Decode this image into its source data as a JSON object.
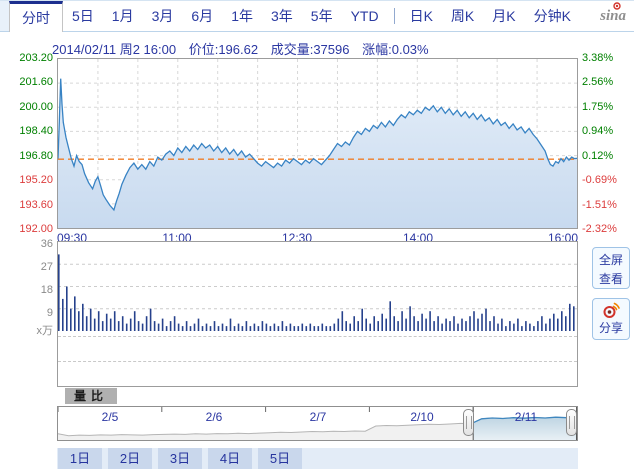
{
  "tabbar": {
    "tabs": [
      {
        "label": "分时"
      },
      {
        "label": "5日"
      },
      {
        "label": "1月"
      },
      {
        "label": "3月"
      },
      {
        "label": "6月"
      },
      {
        "label": "1年"
      },
      {
        "label": "3年"
      },
      {
        "label": "5年"
      },
      {
        "label": "YTD"
      },
      {
        "label": "日K"
      },
      {
        "label": "周K"
      },
      {
        "label": "月K"
      },
      {
        "label": "分钟K"
      }
    ],
    "active_tab": "分时",
    "logo_text": "sina"
  },
  "info_bar": {
    "datetime": "2014/02/11 周2 16:00",
    "price": "价位:196.62",
    "volume": "成交量:37596",
    "change": "涨幅:0.03%"
  },
  "main_chart": {
    "left_axis": [
      "203.20",
      "201.60",
      "200.00",
      "198.40",
      "196.80",
      "195.20",
      "193.60",
      "192.00"
    ],
    "right_axis": [
      "3.38%",
      "2.56%",
      "1.75%",
      "0.94%",
      "0.12%",
      "-0.69%",
      "-1.51%",
      "-2.32%"
    ],
    "time_axis": [
      "09:30",
      "11:00",
      "12:30",
      "14:00",
      "16:00"
    ],
    "colors": {
      "up": "#008000",
      "down": "#dc3c3c",
      "price_line": "#3883c4",
      "prev_close_line": "#f07d28",
      "volume_bar": "#26418c",
      "area_top": "#e3edf8",
      "area_bottom": "#c8daef"
    }
  },
  "volume_axis": [
    "36",
    "27",
    "18",
    "9",
    "x万"
  ],
  "side_buttons": {
    "fullscreen_line1": "全屏",
    "fullscreen_line2": "查看",
    "share": "分享"
  },
  "indicator_tab": "量比",
  "navigator": {
    "dates": [
      "2/5",
      "2/6",
      "2/7",
      "2/10",
      "2/11"
    ],
    "selected": "2/11"
  },
  "day_buttons": [
    "1日",
    "2日",
    "3日",
    "4日",
    "5日"
  ],
  "chart_data": [
    {
      "type": "line",
      "title": "分时价格",
      "x_unit": "minutes from 09:30",
      "x_range": [
        0,
        390
      ],
      "xticks": [
        "09:30",
        "11:00",
        "12:30",
        "14:00",
        "16:00"
      ],
      "ylim": [
        192.0,
        203.2
      ],
      "yticks_price": [
        203.2,
        201.6,
        200.0,
        198.4,
        196.8,
        195.2,
        193.6,
        192.0
      ],
      "yticks_percent": [
        3.38,
        2.56,
        1.75,
        0.94,
        0.12,
        -0.69,
        -1.51,
        -2.32
      ],
      "prev_close": 196.56,
      "last_price": 196.62,
      "change_percent": 0.03,
      "total_volume": 37596,
      "grid": "dashed",
      "points": [
        [
          0,
          196.6
        ],
        [
          1,
          199.0
        ],
        [
          2,
          201.9
        ],
        [
          3,
          200.2
        ],
        [
          4,
          199.0
        ],
        [
          6,
          198.0
        ],
        [
          8,
          197.3
        ],
        [
          10,
          196.6
        ],
        [
          12,
          196.1
        ],
        [
          14,
          196.8
        ],
        [
          16,
          196.4
        ],
        [
          18,
          196.2
        ],
        [
          20,
          195.6
        ],
        [
          23,
          195.0
        ],
        [
          26,
          194.6
        ],
        [
          28,
          195.1
        ],
        [
          30,
          195.4
        ],
        [
          32,
          194.8
        ],
        [
          34,
          194.2
        ],
        [
          36,
          193.9
        ],
        [
          39,
          193.5
        ],
        [
          42,
          193.2
        ],
        [
          44,
          193.8
        ],
        [
          46,
          194.3
        ],
        [
          48,
          194.9
        ],
        [
          51,
          195.5
        ],
        [
          54,
          196.0
        ],
        [
          57,
          196.3
        ],
        [
          60,
          195.9
        ],
        [
          63,
          196.2
        ],
        [
          66,
          195.9
        ],
        [
          69,
          196.4
        ],
        [
          72,
          196.1
        ],
        [
          75,
          196.7
        ],
        [
          78,
          196.5
        ],
        [
          81,
          196.9
        ],
        [
          84,
          197.1
        ],
        [
          87,
          196.8
        ],
        [
          90,
          197.3
        ],
        [
          93,
          197.0
        ],
        [
          96,
          197.4
        ],
        [
          99,
          197.1
        ],
        [
          102,
          197.5
        ],
        [
          105,
          197.2
        ],
        [
          108,
          197.6
        ],
        [
          111,
          197.3
        ],
        [
          114,
          197.5
        ],
        [
          117,
          197.1
        ],
        [
          120,
          197.4
        ],
        [
          123,
          197.0
        ],
        [
          126,
          197.3
        ],
        [
          129,
          196.9
        ],
        [
          132,
          197.2
        ],
        [
          135,
          196.8
        ],
        [
          138,
          197.1
        ],
        [
          141,
          196.7
        ],
        [
          144,
          196.9
        ],
        [
          147,
          196.6
        ],
        [
          150,
          196.3
        ],
        [
          153,
          196.1
        ],
        [
          156,
          196.4
        ],
        [
          159,
          196.2
        ],
        [
          162,
          196.0
        ],
        [
          165,
          196.3
        ],
        [
          168,
          196.1
        ],
        [
          171,
          196.5
        ],
        [
          174,
          196.3
        ],
        [
          177,
          196.6
        ],
        [
          180,
          196.4
        ],
        [
          183,
          196.2
        ],
        [
          186,
          196.5
        ],
        [
          189,
          196.3
        ],
        [
          192,
          196.6
        ],
        [
          195,
          196.4
        ],
        [
          198,
          196.2
        ],
        [
          201,
          196.5
        ],
        [
          204,
          196.8
        ],
        [
          207,
          197.2
        ],
        [
          210,
          197.6
        ],
        [
          213,
          197.4
        ],
        [
          216,
          197.7
        ],
        [
          219,
          197.5
        ],
        [
          222,
          198.0
        ],
        [
          225,
          198.4
        ],
        [
          228,
          198.2
        ],
        [
          231,
          198.6
        ],
        [
          234,
          198.4
        ],
        [
          237,
          198.8
        ],
        [
          240,
          198.6
        ],
        [
          243,
          199.0
        ],
        [
          246,
          198.7
        ],
        [
          249,
          199.1
        ],
        [
          252,
          198.8
        ],
        [
          255,
          199.2
        ],
        [
          258,
          199.5
        ],
        [
          261,
          199.3
        ],
        [
          264,
          199.7
        ],
        [
          267,
          199.5
        ],
        [
          270,
          199.8
        ],
        [
          273,
          199.6
        ],
        [
          276,
          200.0
        ],
        [
          279,
          199.8
        ],
        [
          282,
          200.1
        ],
        [
          285,
          199.7
        ],
        [
          288,
          200.0
        ],
        [
          291,
          199.6
        ],
        [
          294,
          199.9
        ],
        [
          297,
          199.5
        ],
        [
          300,
          199.8
        ],
        [
          303,
          199.4
        ],
        [
          306,
          199.7
        ],
        [
          309,
          199.3
        ],
        [
          312,
          199.6
        ],
        [
          315,
          199.2
        ],
        [
          318,
          199.5
        ],
        [
          321,
          199.1
        ],
        [
          324,
          199.3
        ],
        [
          327,
          198.9
        ],
        [
          330,
          199.2
        ],
        [
          333,
          198.8
        ],
        [
          336,
          199.0
        ],
        [
          339,
          198.6
        ],
        [
          342,
          198.9
        ],
        [
          345,
          198.5
        ],
        [
          348,
          198.7
        ],
        [
          351,
          198.3
        ],
        [
          354,
          198.6
        ],
        [
          357,
          198.2
        ],
        [
          360,
          197.9
        ],
        [
          363,
          197.5
        ],
        [
          366,
          197.1
        ],
        [
          368,
          196.6
        ],
        [
          370,
          196.2
        ],
        [
          372,
          196.1
        ],
        [
          374,
          196.4
        ],
        [
          376,
          196.3
        ],
        [
          378,
          196.6
        ],
        [
          380,
          196.4
        ],
        [
          382,
          196.7
        ],
        [
          384,
          196.5
        ],
        [
          386,
          196.7
        ],
        [
          388,
          196.6
        ],
        [
          390,
          196.62
        ]
      ]
    },
    {
      "type": "bar",
      "title": "成交量 (x万)",
      "minute_step": 3,
      "x_range_minutes": [
        0,
        390
      ],
      "ylim": [
        0,
        36
      ],
      "yticks": [
        36,
        27,
        18,
        9
      ],
      "ylabel": "x万",
      "values": [
        31,
        13,
        18,
        9,
        14,
        8,
        11,
        6,
        9,
        5,
        8,
        4,
        7,
        5,
        8,
        4,
        6,
        3,
        5,
        8,
        4,
        3,
        6,
        9,
        4,
        3,
        5,
        2,
        4,
        6,
        3,
        2,
        4,
        2,
        3,
        5,
        2,
        3,
        2,
        4,
        2,
        3,
        2,
        5,
        2,
        3,
        2,
        4,
        2,
        3,
        2,
        4,
        3,
        2,
        3,
        2,
        4,
        2,
        3,
        2,
        2,
        3,
        2,
        3,
        2,
        2,
        3,
        2,
        2,
        3,
        5,
        8,
        4,
        3,
        6,
        4,
        9,
        5,
        3,
        6,
        4,
        7,
        5,
        12,
        6,
        4,
        8,
        5,
        10,
        6,
        4,
        7,
        5,
        8,
        4,
        6,
        3,
        5,
        4,
        6,
        3,
        5,
        4,
        6,
        8,
        5,
        7,
        9,
        4,
        6,
        3,
        5,
        2,
        4,
        3,
        5,
        2,
        4,
        3,
        2,
        4,
        6,
        3,
        5,
        7,
        5,
        8,
        6,
        11,
        10
      ]
    },
    {
      "type": "area",
      "title": "5日导航",
      "categories": [
        "2/5",
        "2/6",
        "2/7",
        "2/10",
        "2/11"
      ],
      "values_pct": [
        16,
        9,
        11,
        10,
        12,
        11,
        13,
        12,
        11,
        13,
        14,
        15,
        14,
        16,
        15,
        17,
        16,
        18,
        17,
        19,
        20,
        22,
        21,
        23,
        25,
        24,
        26,
        25,
        27,
        26,
        46,
        48,
        47,
        49,
        51,
        53,
        52,
        54,
        56,
        55,
        74,
        77,
        75,
        78,
        76,
        79,
        77,
        80,
        78,
        76
      ],
      "selected_range_pct": [
        80,
        100
      ]
    }
  ]
}
